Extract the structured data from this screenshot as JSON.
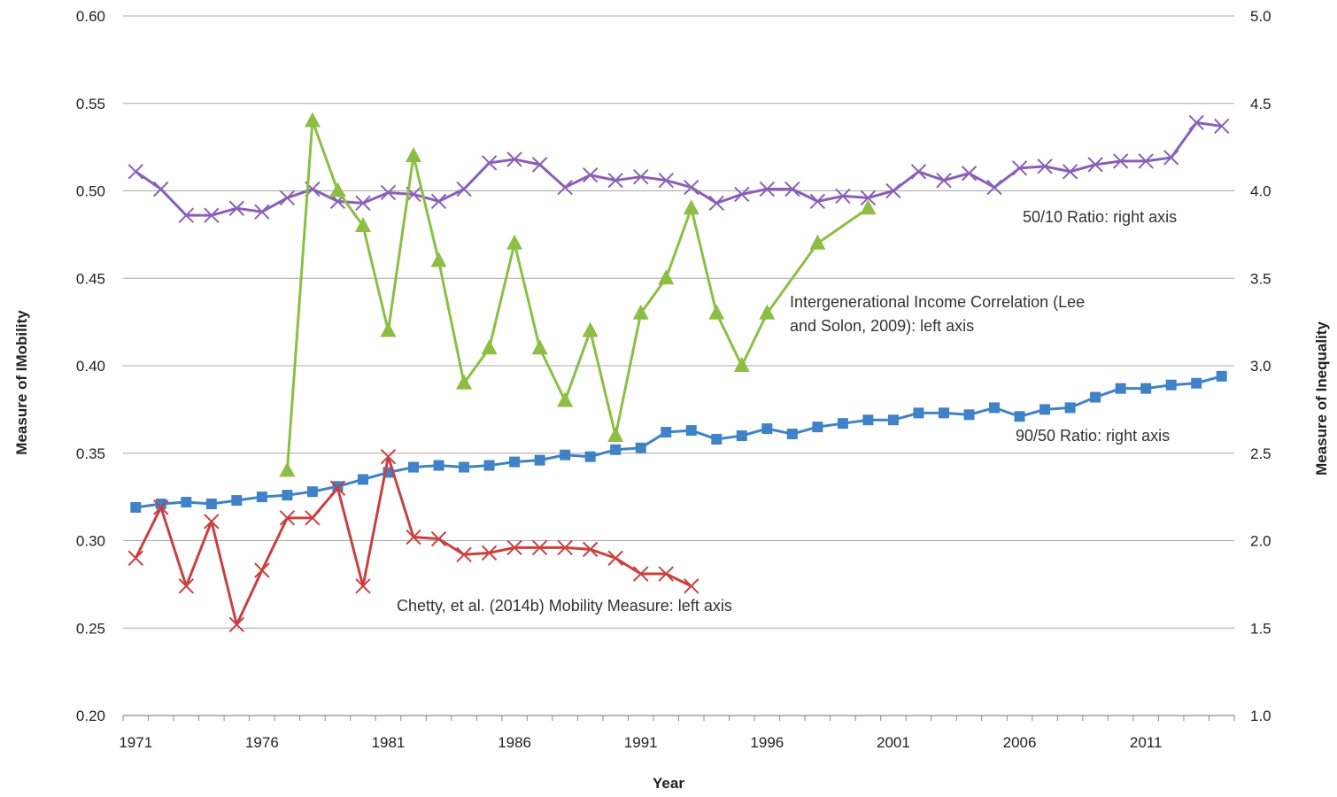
{
  "chart_data": {
    "type": "line",
    "xlabel": "Year",
    "ylabel_left": "Measure of IMobility",
    "ylabel_right": "Measure of Inequality",
    "xlim": [
      1971,
      2014
    ],
    "ylim_left": [
      0.2,
      0.6
    ],
    "ylim_right": [
      1.0,
      5.0
    ],
    "x_ticks": [
      "1971",
      "1976",
      "1981",
      "1986",
      "1991",
      "1996",
      "2001",
      "2006",
      "2011"
    ],
    "y_ticks_left": [
      "0.20",
      "0.25",
      "0.30",
      "0.35",
      "0.40",
      "0.45",
      "0.50",
      "0.55",
      "0.60"
    ],
    "y_ticks_right": [
      "1.0",
      "1.5",
      "2.0",
      "2.5",
      "3.0",
      "3.5",
      "4.0",
      "4.5",
      "5.0"
    ],
    "grid": "horizontal",
    "series": [
      {
        "name": "50/10 Ratio: right axis",
        "axis": "right",
        "color": "#8a5fb8",
        "marker": "x",
        "x": [
          1971,
          1972,
          1973,
          1974,
          1975,
          1976,
          1977,
          1978,
          1979,
          1980,
          1981,
          1982,
          1983,
          1984,
          1985,
          1986,
          1987,
          1988,
          1989,
          1990,
          1991,
          1992,
          1993,
          1994,
          1995,
          1996,
          1997,
          1998,
          1999,
          2000,
          2001,
          2002,
          2003,
          2004,
          2005,
          2006,
          2007,
          2008,
          2009,
          2010,
          2011,
          2012,
          2013,
          2014
        ],
        "values": [
          4.11,
          4.01,
          3.86,
          3.86,
          3.9,
          3.88,
          3.96,
          4.01,
          3.94,
          3.93,
          3.99,
          3.98,
          3.94,
          4.01,
          4.16,
          4.18,
          4.15,
          4.02,
          4.09,
          4.06,
          4.08,
          4.06,
          4.02,
          3.93,
          3.98,
          4.01,
          4.01,
          3.94,
          3.97,
          3.96,
          4.0,
          4.11,
          4.06,
          4.1,
          4.02,
          4.13,
          4.14,
          4.11,
          4.15,
          4.17,
          4.17,
          4.19,
          4.39,
          4.37
        ]
      },
      {
        "name": "Intergenerational Income Correlation (Lee and Solon, 2009): left axis",
        "axis": "left",
        "color": "#8cbe44",
        "marker": "triangle",
        "x": [
          1977,
          1978,
          1979,
          1980,
          1981,
          1982,
          1983,
          1984,
          1985,
          1986,
          1987,
          1988,
          1989,
          1990,
          1991,
          1992,
          1993,
          1994,
          1995,
          1996,
          1998,
          2000
        ],
        "values": [
          0.34,
          0.54,
          0.5,
          0.48,
          0.42,
          0.52,
          0.46,
          0.39,
          0.41,
          0.47,
          0.41,
          0.38,
          0.42,
          0.36,
          0.43,
          0.45,
          0.49,
          0.43,
          0.4,
          0.43,
          0.47,
          0.49
        ]
      },
      {
        "name": "90/50 Ratio: right axis",
        "axis": "right",
        "color": "#3f82c7",
        "marker": "square",
        "x": [
          1971,
          1972,
          1973,
          1974,
          1975,
          1976,
          1977,
          1978,
          1979,
          1980,
          1981,
          1982,
          1983,
          1984,
          1985,
          1986,
          1987,
          1988,
          1989,
          1990,
          1991,
          1992,
          1993,
          1994,
          1995,
          1996,
          1997,
          1998,
          1999,
          2000,
          2001,
          2002,
          2003,
          2004,
          2005,
          2006,
          2007,
          2008,
          2009,
          2010,
          2011,
          2012,
          2013,
          2014
        ],
        "values": [
          2.19,
          2.21,
          2.22,
          2.21,
          2.23,
          2.25,
          2.26,
          2.28,
          2.31,
          2.35,
          2.39,
          2.42,
          2.43,
          2.42,
          2.43,
          2.45,
          2.46,
          2.49,
          2.48,
          2.52,
          2.53,
          2.62,
          2.63,
          2.58,
          2.6,
          2.64,
          2.61,
          2.65,
          2.67,
          2.69,
          2.69,
          2.73,
          2.73,
          2.72,
          2.76,
          2.71,
          2.75,
          2.76,
          2.82,
          2.87,
          2.87,
          2.89,
          2.9,
          2.94
        ]
      },
      {
        "name": "Chetty, et al. (2014b) Mobility Measure: left axis",
        "axis": "left",
        "color": "#c94040",
        "marker": "x",
        "x": [
          1971,
          1972,
          1973,
          1974,
          1975,
          1976,
          1977,
          1978,
          1979,
          1980,
          1981,
          1982,
          1983,
          1984,
          1985,
          1986,
          1987,
          1988,
          1989,
          1990,
          1991,
          1992,
          1993
        ],
        "values": [
          0.29,
          0.319,
          0.274,
          0.311,
          0.252,
          0.283,
          0.313,
          0.313,
          0.33,
          0.274,
          0.348,
          0.302,
          0.301,
          0.292,
          0.293,
          0.296,
          0.296,
          0.296,
          0.295,
          0.29,
          0.281,
          0.281,
          0.274
        ]
      }
    ]
  }
}
